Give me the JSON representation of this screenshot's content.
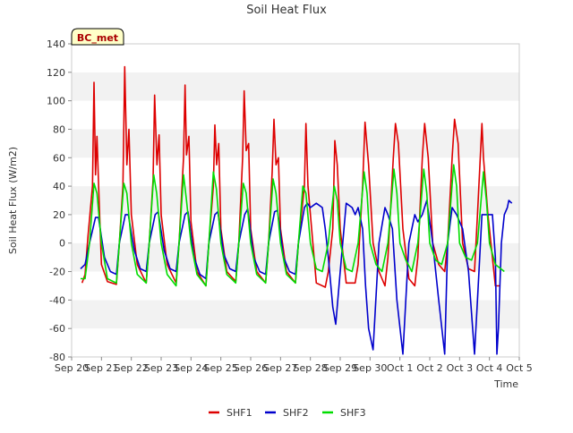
{
  "chart_data": {
    "type": "line",
    "title": "Soil Heat Flux",
    "xlabel": "Time",
    "ylabel": "Soil Heat Flux (W/m2)",
    "ylim": [
      -80,
      140
    ],
    "yticks": [
      -80,
      -60,
      -40,
      -20,
      0,
      20,
      40,
      60,
      80,
      100,
      120,
      140
    ],
    "xlim": [
      0,
      15
    ],
    "xticks": [
      0,
      1,
      2,
      3,
      4,
      5,
      6,
      7,
      8,
      9,
      10,
      11,
      12,
      13,
      14,
      15
    ],
    "xticklabels": [
      "Sep 20",
      "Sep 21",
      "Sep 22",
      "Sep 23",
      "Sep 24",
      "Sep 25",
      "Sep 26",
      "Sep 27",
      "Sep 28",
      "Sep 29",
      "Sep 30",
      "Oct 1",
      "Oct 2",
      "Oct 3",
      "Oct 4",
      "Oct 5"
    ],
    "grid": "horizontal bands",
    "station_label": "BC_met",
    "legend": [
      "SHF1",
      "SHF2",
      "SHF3"
    ],
    "series": [
      {
        "name": "SHF1",
        "color": "#dd0000",
        "x": [
          0.35,
          0.45,
          0.55,
          0.7,
          0.75,
          0.8,
          0.85,
          0.92,
          1.0,
          1.2,
          1.5,
          1.6,
          1.72,
          1.78,
          1.85,
          1.92,
          2.0,
          2.2,
          2.5,
          2.6,
          2.73,
          2.78,
          2.86,
          2.93,
          3.0,
          3.2,
          3.5,
          3.6,
          3.75,
          3.8,
          3.85,
          3.93,
          4.0,
          4.2,
          4.5,
          4.6,
          4.75,
          4.8,
          4.86,
          4.93,
          5.0,
          5.2,
          5.5,
          5.6,
          5.73,
          5.78,
          5.85,
          5.93,
          6.0,
          6.2,
          6.5,
          6.6,
          6.72,
          6.78,
          6.85,
          6.93,
          7.0,
          7.2,
          7.5,
          7.6,
          7.8,
          7.85,
          7.92,
          8.0,
          8.2,
          8.5,
          8.6,
          8.75,
          8.82,
          8.9,
          9.0,
          9.2,
          9.5,
          9.6,
          9.75,
          9.83,
          9.95,
          10.1,
          10.3,
          10.5,
          10.6,
          10.78,
          10.85,
          10.95,
          11.1,
          11.3,
          11.5,
          11.6,
          11.75,
          11.83,
          11.95,
          12.1,
          12.3,
          12.5,
          12.6,
          12.75,
          12.83,
          12.95,
          13.1,
          13.3,
          13.5,
          13.6,
          13.75,
          13.8
        ],
        "values": [
          -28,
          -22,
          5,
          40,
          113,
          48,
          75,
          30,
          -15,
          -27,
          -29,
          0,
          40,
          124,
          55,
          80,
          20,
          -15,
          -28,
          0,
          45,
          104,
          55,
          76,
          20,
          -15,
          -28,
          0,
          60,
          111,
          62,
          75,
          15,
          -20,
          -30,
          0,
          40,
          83,
          55,
          70,
          10,
          -20,
          -27,
          0,
          60,
          107,
          65,
          70,
          10,
          -20,
          -28,
          0,
          50,
          87,
          55,
          60,
          10,
          -20,
          -28,
          0,
          40,
          84,
          40,
          20,
          -28,
          -31,
          -20,
          10,
          72,
          55,
          10,
          -28,
          -28,
          -15,
          40,
          85,
          55,
          0,
          -20,
          -30,
          -10,
          60,
          84,
          70,
          10,
          -25,
          -30,
          -10,
          60,
          84,
          60,
          0,
          -15,
          -20,
          0,
          60,
          87,
          70,
          0,
          -18,
          -20,
          20,
          84,
          60
        ],
        "values2": [
          20,
          -30,
          -30
        ]
      },
      {
        "name": "SHF2",
        "color": "#0000cc",
        "x": [
          0.3,
          0.45,
          0.6,
          0.8,
          0.9,
          1.1,
          1.3,
          1.5,
          1.6,
          1.8,
          1.9,
          2.1,
          2.3,
          2.5,
          2.6,
          2.8,
          2.9,
          3.1,
          3.3,
          3.5,
          3.6,
          3.8,
          3.9,
          4.1,
          4.3,
          4.5,
          4.6,
          4.8,
          4.9,
          5.1,
          5.3,
          5.5,
          5.6,
          5.8,
          5.9,
          6.1,
          6.3,
          6.5,
          6.6,
          6.8,
          6.9,
          7.1,
          7.3,
          7.5,
          7.6,
          7.8,
          7.9,
          8.0,
          8.2,
          8.4,
          8.5,
          8.6,
          8.75,
          8.85,
          9.0,
          9.2,
          9.4,
          9.5,
          9.6,
          9.75,
          9.85,
          9.95,
          10.1,
          10.3,
          10.5,
          10.6,
          10.75,
          10.9,
          11.1,
          11.3,
          11.5,
          11.6,
          11.75,
          11.9,
          12.1,
          12.3,
          12.5,
          12.6,
          12.75,
          12.9,
          13.1,
          13.3,
          13.5,
          13.6,
          13.75,
          13.9,
          14.0,
          14.1,
          14.2,
          14.25
        ],
        "values": [
          -18,
          -15,
          0,
          18,
          18,
          -10,
          -20,
          -22,
          0,
          20,
          20,
          -5,
          -18,
          -20,
          0,
          20,
          22,
          -5,
          -18,
          -20,
          0,
          20,
          22,
          -10,
          -22,
          -25,
          0,
          20,
          22,
          -8,
          -18,
          -20,
          0,
          20,
          24,
          -10,
          -20,
          -22,
          0,
          22,
          23,
          -10,
          -20,
          -22,
          0,
          25,
          28,
          25,
          28,
          25,
          10,
          -10,
          -45,
          -57,
          -20,
          28,
          25,
          20,
          25,
          10,
          -30,
          -60,
          -75,
          0,
          25,
          20,
          10,
          -40,
          -78,
          0,
          20,
          15,
          20,
          30,
          0,
          -40,
          -78,
          0,
          25,
          20,
          10,
          -20,
          -78,
          -40,
          20,
          20,
          20,
          20,
          -10,
          -78
        ],
        "tail_x": [
          14.3,
          14.4,
          14.5,
          14.6,
          14.65,
          14.75
        ],
        "tail_values": [
          -60,
          0,
          20,
          25,
          30,
          28
        ]
      },
      {
        "name": "SHF3",
        "color": "#00dd00",
        "x": [
          0.3,
          0.45,
          0.6,
          0.75,
          0.85,
          1.0,
          1.2,
          1.5,
          1.6,
          1.75,
          1.85,
          2.0,
          2.2,
          2.5,
          2.6,
          2.75,
          2.85,
          3.0,
          3.2,
          3.5,
          3.6,
          3.75,
          3.85,
          4.0,
          4.2,
          4.5,
          4.6,
          4.75,
          4.85,
          5.0,
          5.2,
          5.5,
          5.6,
          5.75,
          5.85,
          6.0,
          6.2,
          6.5,
          6.6,
          6.75,
          6.85,
          7.0,
          7.2,
          7.5,
          7.6,
          7.75,
          7.85,
          8.0,
          8.2,
          8.4,
          8.6,
          8.8,
          8.9,
          9.0,
          9.2,
          9.4,
          9.6,
          9.8,
          9.9,
          10.0,
          10.2,
          10.4,
          10.6,
          10.8,
          10.9,
          11.0,
          11.2,
          11.4,
          11.6,
          11.8,
          11.9,
          12.0,
          12.2,
          12.4,
          12.6,
          12.8,
          12.9,
          13.0,
          13.2,
          13.4,
          13.6,
          13.8,
          13.9,
          14.0,
          14.2,
          14.5
        ],
        "values": [
          -25,
          -25,
          0,
          42,
          35,
          0,
          -25,
          -28,
          0,
          42,
          35,
          0,
          -22,
          -28,
          0,
          48,
          35,
          0,
          -22,
          -30,
          0,
          48,
          30,
          0,
          -22,
          -30,
          0,
          50,
          38,
          0,
          -22,
          -28,
          0,
          42,
          35,
          0,
          -22,
          -28,
          0,
          45,
          35,
          0,
          -22,
          -28,
          0,
          40,
          35,
          0,
          -18,
          -20,
          0,
          40,
          30,
          0,
          -18,
          -20,
          0,
          50,
          35,
          0,
          -15,
          -20,
          0,
          52,
          35,
          0,
          -12,
          -20,
          0,
          52,
          35,
          0,
          -12,
          -15,
          0,
          55,
          40,
          0,
          -10,
          -12,
          0,
          50,
          30,
          0,
          -15,
          -20
        ]
      }
    ]
  }
}
